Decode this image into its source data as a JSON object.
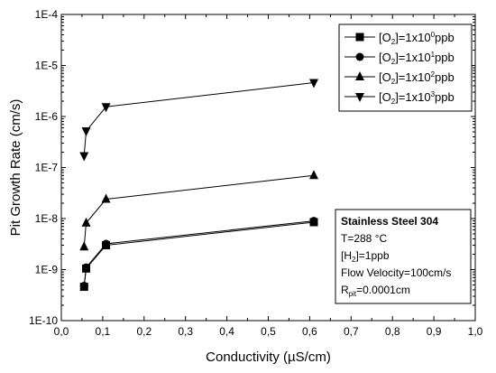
{
  "chart_data": {
    "type": "line",
    "title": "",
    "xlabel": "Conductivity (µS/cm)",
    "ylabel": "Pit Growth Rate (cm/s)",
    "xlim": [
      0.0,
      1.0
    ],
    "ylim": [
      1e-10,
      0.0001
    ],
    "yscale": "log",
    "x_ticks": [
      0.0,
      0.1,
      0.2,
      0.3,
      0.4,
      0.5,
      0.6,
      0.7,
      0.8,
      0.9,
      1.0
    ],
    "x_tick_labels": [
      "0,0",
      "0,1",
      "0,2",
      "0,3",
      "0,4",
      "0,5",
      "0,6",
      "0,7",
      "0,8",
      "0,9",
      "1,0"
    ],
    "y_ticks": [
      1e-10,
      1e-09,
      1e-08,
      1e-07,
      1e-06,
      1e-05,
      0.0001
    ],
    "y_tick_labels": [
      "1E-10",
      "1E-9",
      "1E-8",
      "1E-7",
      "1E-6",
      "1E-5",
      "1E-4"
    ],
    "legend_position": "top-right",
    "series": [
      {
        "name_pre": "[O",
        "name_sub": "2",
        "name_mid": "]=1x10",
        "name_sup": "0",
        "name_post": "ppb",
        "marker": "square",
        "x": [
          0.055,
          0.06,
          0.108,
          0.61
        ],
        "y": [
          4.6e-10,
          1.05e-09,
          3e-09,
          8.5e-09
        ]
      },
      {
        "name_pre": "[O",
        "name_sub": "2",
        "name_mid": "]=1x10",
        "name_sup": "1",
        "name_post": "ppb",
        "marker": "circle",
        "x": [
          0.055,
          0.06,
          0.108,
          0.61
        ],
        "y": [
          4.8e-10,
          1.1e-09,
          3.2e-09,
          9e-09
        ]
      },
      {
        "name_pre": "[O",
        "name_sub": "2",
        "name_mid": "]=1x10",
        "name_sup": "2",
        "name_post": "ppb",
        "marker": "triangle-up",
        "x": [
          0.055,
          0.06,
          0.108,
          0.61
        ],
        "y": [
          2.8e-09,
          8.2e-09,
          2.4e-08,
          7e-08
        ]
      },
      {
        "name_pre": "[O",
        "name_sub": "2",
        "name_mid": "]=1x10",
        "name_sup": "3",
        "name_post": "ppb",
        "marker": "triangle-down",
        "x": [
          0.055,
          0.06,
          0.108,
          0.61
        ],
        "y": [
          1.7e-07,
          5.2e-07,
          1.55e-06,
          4.6e-06
        ]
      }
    ],
    "annotation": {
      "title": "Stainless Steel 304",
      "temp": "T=288 °C",
      "h2_pre": "[H",
      "h2_sub": "2",
      "h2_post": "]=1ppb",
      "flow": "Flow Velocity=100cm/s",
      "r_pre": "R",
      "r_sub": "pit",
      "r_post": "=0.0001cm"
    },
    "colors": {
      "line": "#000000",
      "marker": "#000000",
      "background": "#ffffff"
    }
  }
}
